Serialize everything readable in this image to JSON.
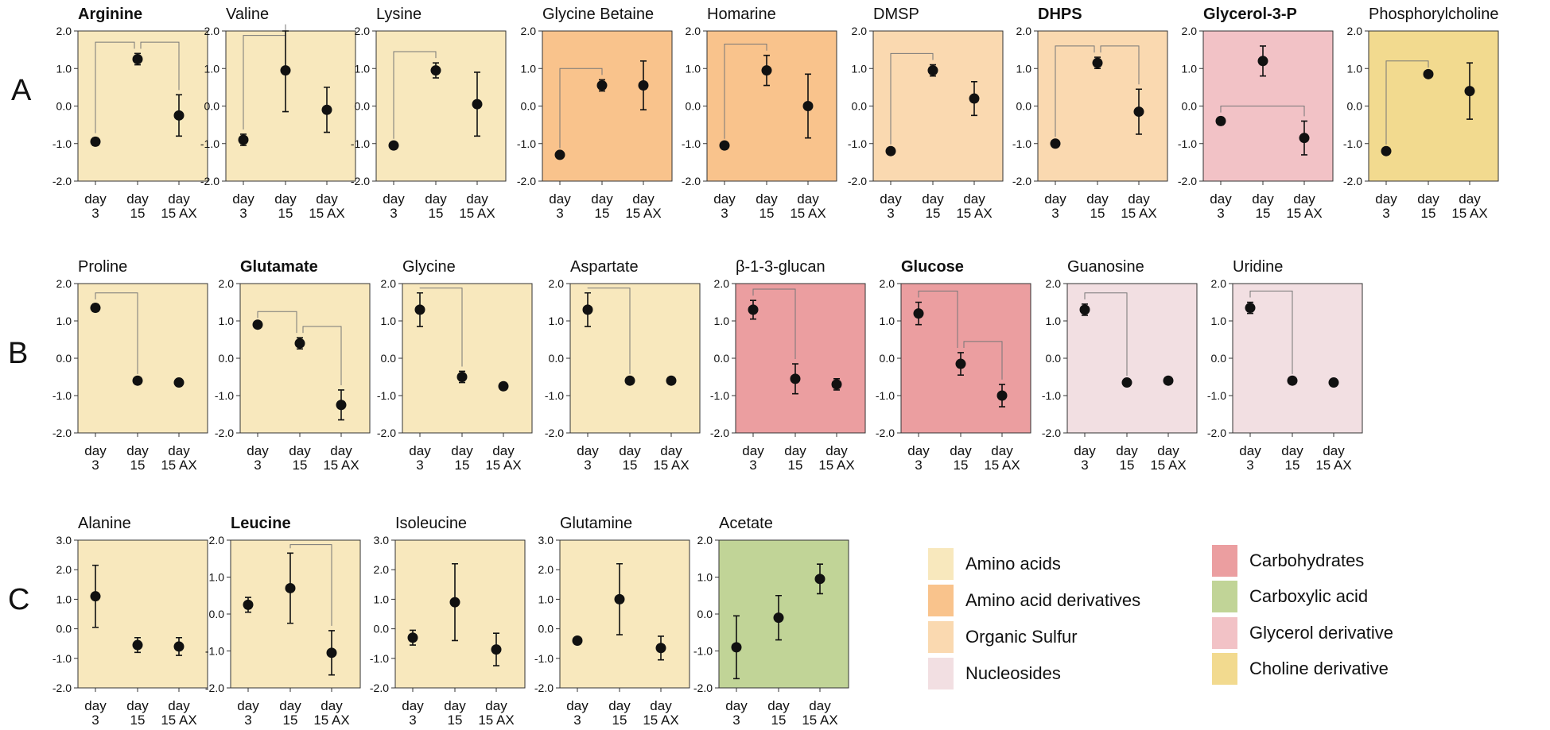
{
  "colors": {
    "amino_acids": "#f8e8bd",
    "amino_acid_derivatives": "#f9c38c",
    "organic_sulfur": "#fad9b0",
    "nucleosides": "#f2dfe2",
    "carbohydrates": "#eb9ea0",
    "carboxylic_acid": "#c1d497",
    "glycerol_derivative": "#f2c2c6",
    "choline_derivative": "#f2da8f"
  },
  "row_labels": [
    "A",
    "B",
    "C"
  ],
  "legend": [
    {
      "label": "Amino acids",
      "color_key": "amino_acids"
    },
    {
      "label": "Amino acid derivatives",
      "color_key": "amino_acid_derivatives"
    },
    {
      "label": "Organic Sulfur",
      "color_key": "organic_sulfur"
    },
    {
      "label": "Nucleosides",
      "color_key": "nucleosides"
    },
    {
      "label": "Carbohydrates",
      "color_key": "carbohydrates"
    },
    {
      "label": "Carboxylic acid",
      "color_key": "carboxylic_acid"
    },
    {
      "label": "Glycerol derivative",
      "color_key": "glycerol_derivative"
    },
    {
      "label": "Choline derivative",
      "color_key": "choline_derivative"
    }
  ],
  "chart_data": [
    {
      "type": "scatter",
      "title": "Arginine",
      "bold": true,
      "row": "A",
      "color_key": "amino_acids",
      "ylim": [
        -2,
        2
      ],
      "yticks": [
        "2.0",
        "1.0",
        "0.0",
        "-1.0",
        "-2.0"
      ],
      "categories": [
        [
          "day",
          "3"
        ],
        [
          "day",
          "15"
        ],
        [
          "day",
          "15 AX"
        ]
      ],
      "values": [
        -0.95,
        1.25,
        -0.25
      ],
      "errors": [
        0.1,
        0.15,
        0.55
      ],
      "brackets": [
        [
          0,
          1
        ],
        [
          1,
          2
        ]
      ]
    },
    {
      "type": "scatter",
      "title": "Valine",
      "bold": false,
      "row": "A",
      "color_key": "amino_acids",
      "ylim": [
        -2,
        2
      ],
      "yticks": [
        "2.0",
        "1.0",
        "0.0",
        "-1.0",
        "-2.0"
      ],
      "categories": [
        [
          "day",
          "3"
        ],
        [
          "day",
          "15"
        ],
        [
          "day",
          "15 AX"
        ]
      ],
      "values": [
        -0.9,
        0.95,
        -0.1
      ],
      "errors": [
        0.15,
        1.1,
        0.6
      ],
      "brackets": [
        [
          0,
          1
        ]
      ]
    },
    {
      "type": "scatter",
      "title": "Lysine",
      "bold": false,
      "row": "A",
      "color_key": "amino_acids",
      "ylim": [
        -2,
        2
      ],
      "yticks": [
        "2.0",
        "1.0",
        "0.0",
        "-1.0",
        "-2.0"
      ],
      "categories": [
        [
          "day",
          "3"
        ],
        [
          "day",
          "15"
        ],
        [
          "day",
          "15 AX"
        ]
      ],
      "values": [
        -1.05,
        0.95,
        0.05
      ],
      "errors": [
        0.05,
        0.2,
        0.85
      ],
      "brackets": [
        [
          0,
          1
        ]
      ]
    },
    {
      "type": "scatter",
      "title": "Glycine Betaine",
      "bold": false,
      "row": "A",
      "color_key": "amino_acid_derivatives",
      "ylim": [
        -2,
        2
      ],
      "yticks": [
        "2.0",
        "1.0",
        "0.0",
        "-1.0",
        "-2.0"
      ],
      "categories": [
        [
          "day",
          "3"
        ],
        [
          "day",
          "15"
        ],
        [
          "day",
          "15 AX"
        ]
      ],
      "values": [
        -1.3,
        0.55,
        0.55
      ],
      "errors": [
        0.05,
        0.15,
        0.65
      ],
      "brackets": [
        [
          0,
          1
        ]
      ]
    },
    {
      "type": "scatter",
      "title": "Homarine",
      "bold": false,
      "row": "A",
      "color_key": "amino_acid_derivatives",
      "ylim": [
        -2,
        2
      ],
      "yticks": [
        "2.0",
        "1.0",
        "0.0",
        "-1.0",
        "-2.0"
      ],
      "categories": [
        [
          "day",
          "3"
        ],
        [
          "day",
          "15"
        ],
        [
          "day",
          "15 AX"
        ]
      ],
      "values": [
        -1.05,
        0.95,
        0.0
      ],
      "errors": [
        0.05,
        0.4,
        0.85
      ],
      "brackets": [
        [
          0,
          1
        ]
      ]
    },
    {
      "type": "scatter",
      "title": "DMSP",
      "bold": false,
      "row": "A",
      "color_key": "organic_sulfur",
      "ylim": [
        -2,
        2
      ],
      "yticks": [
        "2.0",
        "1.0",
        "0.0",
        "-1.0",
        "-2.0"
      ],
      "categories": [
        [
          "day",
          "3"
        ],
        [
          "day",
          "15"
        ],
        [
          "day",
          "15 AX"
        ]
      ],
      "values": [
        -1.2,
        0.95,
        0.2
      ],
      "errors": [
        0.05,
        0.15,
        0.45
      ],
      "brackets": [
        [
          0,
          1
        ]
      ]
    },
    {
      "type": "scatter",
      "title": "DHPS",
      "bold": true,
      "row": "A",
      "color_key": "organic_sulfur",
      "ylim": [
        -2,
        2
      ],
      "yticks": [
        "2.0",
        "1.0",
        "0.0",
        "-1.0",
        "-2.0"
      ],
      "categories": [
        [
          "day",
          "3"
        ],
        [
          "day",
          "15"
        ],
        [
          "day",
          "15 AX"
        ]
      ],
      "values": [
        -1.0,
        1.15,
        -0.15
      ],
      "errors": [
        0.05,
        0.15,
        0.6
      ],
      "brackets": [
        [
          0,
          1
        ],
        [
          1,
          2
        ]
      ]
    },
    {
      "type": "scatter",
      "title": "Glycerol-3-P",
      "bold": true,
      "row": "A",
      "color_key": "glycerol_derivative",
      "ylim": [
        -2,
        2
      ],
      "yticks": [
        "2.0",
        "1.0",
        "0.0",
        "-1.0",
        "-2.0"
      ],
      "categories": [
        [
          "day",
          "3"
        ],
        [
          "day",
          "15"
        ],
        [
          "day",
          "15 AX"
        ]
      ],
      "values": [
        -0.4,
        1.2,
        -0.85
      ],
      "errors": [
        0.1,
        0.4,
        0.45
      ],
      "brackets": [
        [
          0,
          2
        ]
      ]
    },
    {
      "type": "scatter",
      "title": "Phosphorylcholine",
      "bold": false,
      "row": "A",
      "color_key": "choline_derivative",
      "ylim": [
        -2,
        2
      ],
      "yticks": [
        "2.0",
        "1.0",
        "0.0",
        "-1.0",
        "-2.0"
      ],
      "categories": [
        [
          "day",
          "3"
        ],
        [
          "day",
          "15"
        ],
        [
          "day",
          "15 AX"
        ]
      ],
      "values": [
        -1.2,
        0.85,
        0.4
      ],
      "errors": [
        0.05,
        0.05,
        0.75
      ],
      "brackets": [
        [
          0,
          1
        ]
      ]
    },
    {
      "type": "scatter",
      "title": "Proline",
      "bold": false,
      "row": "B",
      "color_key": "amino_acids",
      "ylim": [
        -2,
        2
      ],
      "yticks": [
        "2.0",
        "1.0",
        "0.0",
        "-1.0",
        "-2.0"
      ],
      "categories": [
        [
          "day",
          "3"
        ],
        [
          "day",
          "15"
        ],
        [
          "day",
          "15 AX"
        ]
      ],
      "values": [
        1.35,
        -0.6,
        -0.65
      ],
      "errors": [
        0.1,
        0.05,
        0.05
      ],
      "brackets": [
        [
          0,
          1
        ]
      ]
    },
    {
      "type": "scatter",
      "title": "Glutamate",
      "bold": true,
      "row": "B",
      "color_key": "amino_acids",
      "ylim": [
        -2,
        2
      ],
      "yticks": [
        "2.0",
        "1.0",
        "0.0",
        "-1.0",
        "-2.0"
      ],
      "categories": [
        [
          "day",
          "3"
        ],
        [
          "day",
          "15"
        ],
        [
          "day",
          "15 AX"
        ]
      ],
      "values": [
        0.9,
        0.4,
        -1.25
      ],
      "errors": [
        0.05,
        0.15,
        0.4
      ],
      "brackets": [
        [
          0,
          1
        ],
        [
          1,
          2
        ]
      ]
    },
    {
      "type": "scatter",
      "title": "Glycine",
      "bold": false,
      "row": "B",
      "color_key": "amino_acids",
      "ylim": [
        -2,
        2
      ],
      "yticks": [
        "2.0",
        "1.0",
        "0.0",
        "-1.0",
        "-2.0"
      ],
      "categories": [
        [
          "day",
          "3"
        ],
        [
          "day",
          "15"
        ],
        [
          "day",
          "15 AX"
        ]
      ],
      "values": [
        1.3,
        -0.5,
        -0.75
      ],
      "errors": [
        0.45,
        0.15,
        0.05
      ],
      "brackets": [
        [
          0,
          1
        ]
      ]
    },
    {
      "type": "scatter",
      "title": "Aspartate",
      "bold": false,
      "row": "B",
      "color_key": "amino_acids",
      "ylim": [
        -2,
        2
      ],
      "yticks": [
        "2.0",
        "1.0",
        "0.0",
        "-1.0",
        "-2.0"
      ],
      "categories": [
        [
          "day",
          "3"
        ],
        [
          "day",
          "15"
        ],
        [
          "day",
          "15 AX"
        ]
      ],
      "values": [
        1.3,
        -0.6,
        -0.6
      ],
      "errors": [
        0.45,
        0.05,
        0.05
      ],
      "brackets": [
        [
          0,
          1
        ]
      ]
    },
    {
      "type": "scatter",
      "title": "β-1-3-glucan",
      "bold": false,
      "row": "B",
      "color_key": "carbohydrates",
      "ylim": [
        -2,
        2
      ],
      "yticks": [
        "2.0",
        "1.0",
        "0.0",
        "-1.0",
        "-2.0"
      ],
      "categories": [
        [
          "day",
          "3"
        ],
        [
          "day",
          "15"
        ],
        [
          "day",
          "15 AX"
        ]
      ],
      "values": [
        1.3,
        -0.55,
        -0.7
      ],
      "errors": [
        0.25,
        0.4,
        0.15
      ],
      "brackets": [
        [
          0,
          1
        ]
      ]
    },
    {
      "type": "scatter",
      "title": "Glucose",
      "bold": true,
      "row": "B",
      "color_key": "carbohydrates",
      "ylim": [
        -2,
        2
      ],
      "yticks": [
        "2.0",
        "1.0",
        "0.0",
        "-1.0",
        "-2.0"
      ],
      "categories": [
        [
          "day",
          "3"
        ],
        [
          "day",
          "15"
        ],
        [
          "day",
          "15 AX"
        ]
      ],
      "values": [
        1.2,
        -0.15,
        -1.0
      ],
      "errors": [
        0.3,
        0.3,
        0.3
      ],
      "brackets": [
        [
          0,
          1
        ],
        [
          1,
          2
        ]
      ]
    },
    {
      "type": "scatter",
      "title": "Guanosine",
      "bold": false,
      "row": "B",
      "color_key": "nucleosides",
      "ylim": [
        -2,
        2
      ],
      "yticks": [
        "2.0",
        "1.0",
        "0.0",
        "-1.0",
        "-2.0"
      ],
      "categories": [
        [
          "day",
          "3"
        ],
        [
          "day",
          "15"
        ],
        [
          "day",
          "15 AX"
        ]
      ],
      "values": [
        1.3,
        -0.65,
        -0.6
      ],
      "errors": [
        0.15,
        0.05,
        0.05
      ],
      "brackets": [
        [
          0,
          1
        ]
      ]
    },
    {
      "type": "scatter",
      "title": "Uridine",
      "bold": false,
      "row": "B",
      "color_key": "nucleosides",
      "ylim": [
        -2,
        2
      ],
      "yticks": [
        "2.0",
        "1.0",
        "0.0",
        "-1.0",
        "-2.0"
      ],
      "categories": [
        [
          "day",
          "3"
        ],
        [
          "day",
          "15"
        ],
        [
          "day",
          "15 AX"
        ]
      ],
      "values": [
        1.35,
        -0.6,
        -0.65
      ],
      "errors": [
        0.15,
        0.05,
        0.05
      ],
      "brackets": [
        [
          0,
          1
        ]
      ]
    },
    {
      "type": "scatter",
      "title": "Alanine",
      "bold": false,
      "row": "C",
      "color_key": "amino_acids",
      "ylim": [
        -2,
        3
      ],
      "yticks": [
        "3.0",
        "2.0",
        "1.0",
        "0.0",
        "-1.0",
        "-2.0"
      ],
      "categories": [
        [
          "day",
          "3"
        ],
        [
          "day",
          "15"
        ],
        [
          "day",
          "15 AX"
        ]
      ],
      "values": [
        1.1,
        -0.55,
        -0.6
      ],
      "errors": [
        1.05,
        0.25,
        0.3
      ],
      "brackets": []
    },
    {
      "type": "scatter",
      "title": "Leucine",
      "bold": true,
      "row": "C",
      "color_key": "amino_acids",
      "ylim": [
        -2,
        2
      ],
      "yticks": [
        "2.0",
        "1.0",
        "0.0",
        "-1.0",
        "-2.0"
      ],
      "categories": [
        [
          "day",
          "3"
        ],
        [
          "day",
          "15"
        ],
        [
          "day",
          "15 AX"
        ]
      ],
      "values": [
        0.25,
        0.7,
        -1.05
      ],
      "errors": [
        0.2,
        0.95,
        0.6
      ],
      "brackets": [
        [
          1,
          2
        ]
      ]
    },
    {
      "type": "scatter",
      "title": "Isoleucine",
      "bold": false,
      "row": "C",
      "color_key": "amino_acids",
      "ylim": [
        -2,
        3
      ],
      "yticks": [
        "3.0",
        "2.0",
        "1.0",
        "0.0",
        "-1.0",
        "-2.0"
      ],
      "categories": [
        [
          "day",
          "3"
        ],
        [
          "day",
          "15"
        ],
        [
          "day",
          "15 AX"
        ]
      ],
      "values": [
        -0.3,
        0.9,
        -0.7
      ],
      "errors": [
        0.25,
        1.3,
        0.55
      ],
      "brackets": []
    },
    {
      "type": "scatter",
      "title": "Glutamine",
      "bold": false,
      "row": "C",
      "color_key": "amino_acids",
      "ylim": [
        -2,
        3
      ],
      "yticks": [
        "3.0",
        "2.0",
        "1.0",
        "0.0",
        "-1.0",
        "-2.0"
      ],
      "categories": [
        [
          "day",
          "3"
        ],
        [
          "day",
          "15"
        ],
        [
          "day",
          "15 AX"
        ]
      ],
      "values": [
        -0.4,
        1.0,
        -0.65
      ],
      "errors": [
        0.1,
        1.2,
        0.4
      ],
      "brackets": []
    },
    {
      "type": "scatter",
      "title": "Acetate",
      "bold": false,
      "row": "C",
      "color_key": "carboxylic_acid",
      "ylim": [
        -2,
        2
      ],
      "yticks": [
        "2.0",
        "1.0",
        "0.0",
        "-1.0",
        "-2.0"
      ],
      "categories": [
        [
          "day",
          "3"
        ],
        [
          "day",
          "15"
        ],
        [
          "day",
          "15 AX"
        ]
      ],
      "values": [
        -0.9,
        -0.1,
        0.95
      ],
      "errors": [
        0.85,
        0.6,
        0.4
      ],
      "brackets": []
    }
  ]
}
